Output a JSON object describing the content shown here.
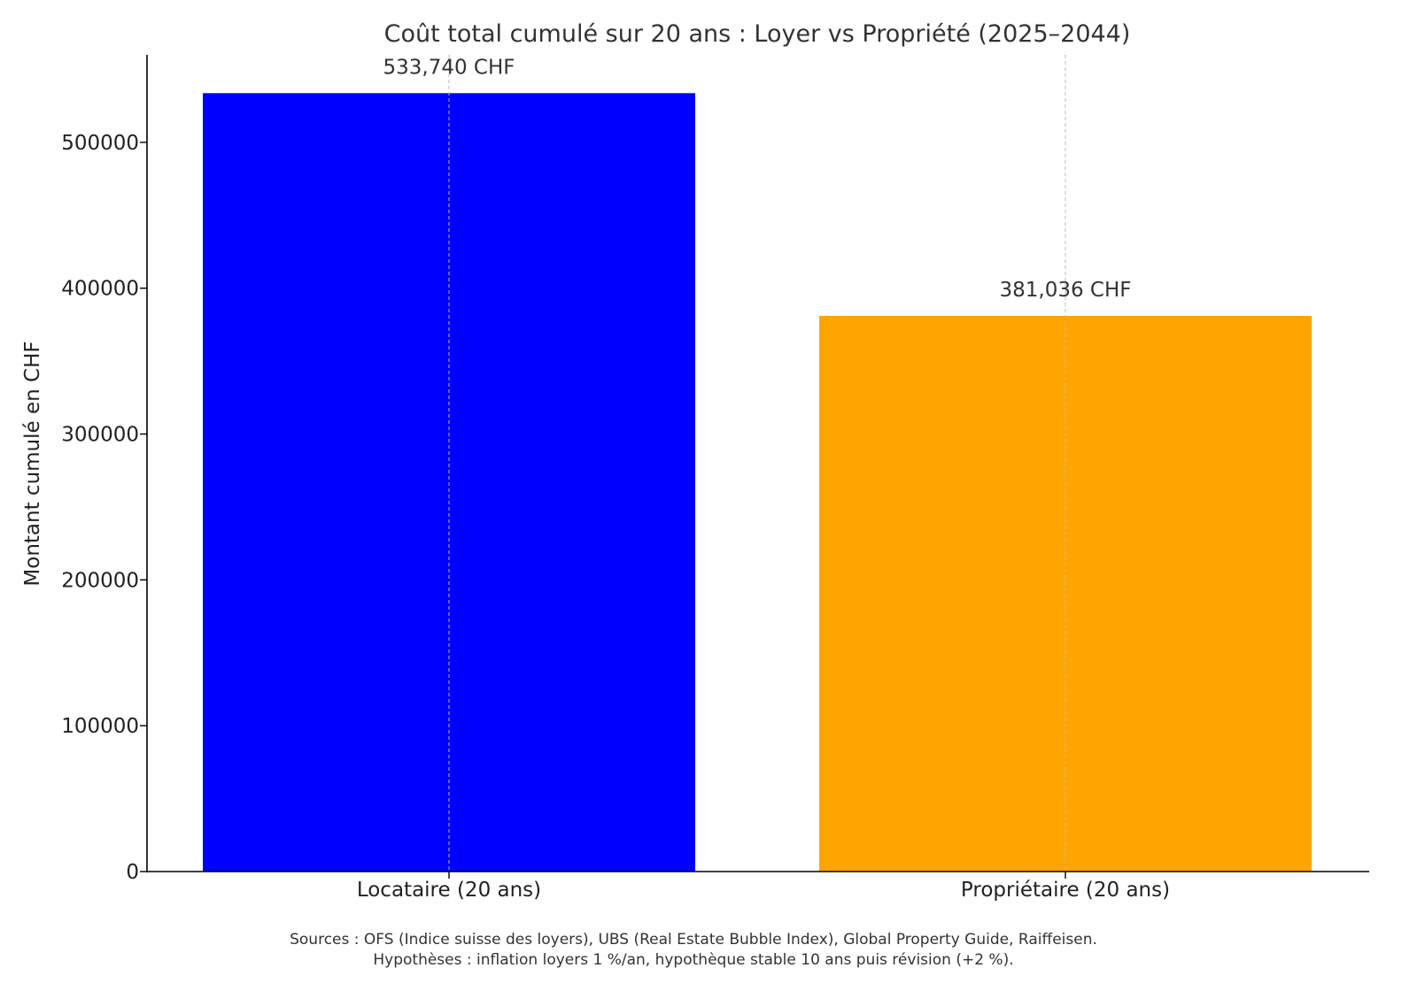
{
  "chart_data": {
    "type": "bar",
    "title": "Coût total cumulé sur 20 ans : Loyer vs Propriété (2025–2044)",
    "xlabel": "",
    "ylabel": "Montant cumulé en CHF",
    "categories": [
      "Locataire (20 ans)",
      "Propriétaire (20 ans)"
    ],
    "values": [
      533740,
      381036
    ],
    "data_labels": [
      "533,740 CHF",
      "381,036 CHF"
    ],
    "colors": [
      "#0000ff",
      "#ffa500"
    ],
    "ylim": [
      0,
      560000
    ],
    "yticks": [
      0,
      100000,
      200000,
      300000,
      400000,
      500000
    ],
    "ytick_labels": [
      "0",
      "100000",
      "200000",
      "300000",
      "400000",
      "500000"
    ],
    "grid": "x-axis dashed",
    "footnotes": [
      "Sources : OFS (Indice suisse des loyers), UBS (Real Estate Bubble Index), Global Property Guide, Raiffeisen.",
      "Hypothèses : inflation loyers 1 %/an, hypothèque stable 10 ans puis révision (+2 %)."
    ]
  }
}
